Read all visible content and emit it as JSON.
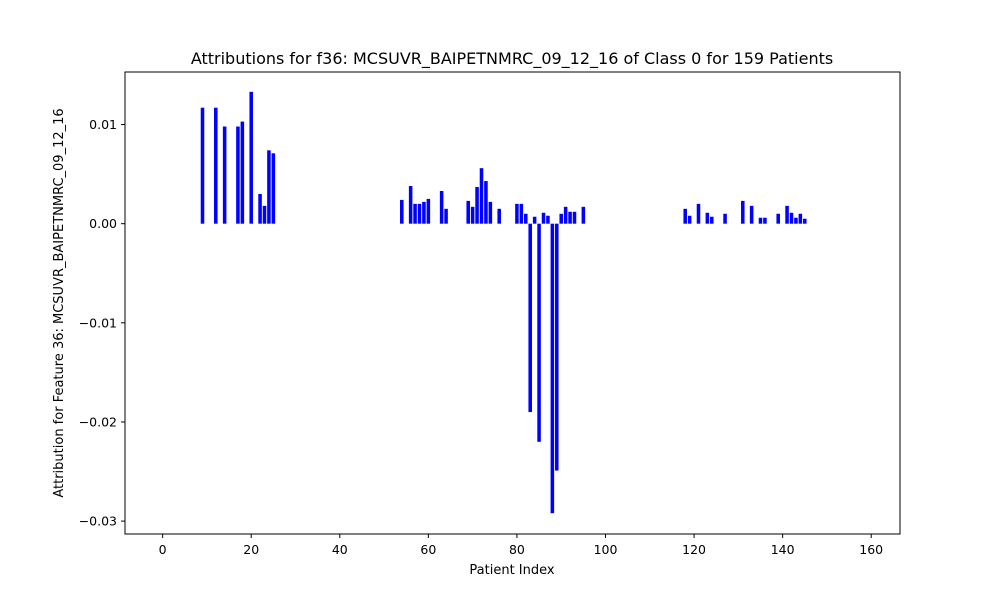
{
  "chart_data": {
    "type": "bar",
    "title": "Attributions for f36: MCSUVR_BAIPETNMRC_09_12_16 of Class 0 for 159 Patients",
    "xlabel": "Patient Index",
    "ylabel": "Attribution for Feature 36: MCSUVR_BAIPETNMRC_09_12_16",
    "xlim": [
      -8.5,
      166.5
    ],
    "ylim": [
      -0.0313,
      0.0153
    ],
    "xticks": [
      0,
      20,
      40,
      60,
      80,
      100,
      120,
      140,
      160
    ],
    "xtick_labels": [
      "0",
      "20",
      "40",
      "60",
      "80",
      "100",
      "120",
      "140",
      "160"
    ],
    "yticks": [
      0.01,
      0.0,
      -0.01,
      -0.02,
      -0.03
    ],
    "ytick_labels": [
      "0.01",
      "0.00",
      "−0.01",
      "−0.02",
      "−0.03"
    ],
    "bar_color": "#0000ff",
    "bar_width": 0.8,
    "grid": false,
    "series": [
      {
        "name": "Attribution",
        "x": [
          9,
          12,
          14,
          17,
          18,
          20,
          22,
          23,
          24,
          25,
          54,
          56,
          57,
          58,
          59,
          60,
          63,
          64,
          69,
          70,
          71,
          72,
          73,
          74,
          76,
          80,
          81,
          82,
          83,
          84,
          85,
          86,
          87,
          88,
          89,
          90,
          91,
          92,
          93,
          95,
          118,
          119,
          121,
          123,
          124,
          127,
          131,
          133,
          135,
          136,
          139,
          141,
          142,
          143,
          144,
          145
        ],
        "values": [
          0.0117,
          0.0117,
          0.0098,
          0.0098,
          0.0103,
          0.0133,
          0.003,
          0.0018,
          0.0074,
          0.0071,
          0.0024,
          0.0038,
          0.002,
          0.002,
          0.0022,
          0.0025,
          0.0033,
          0.0015,
          0.0023,
          0.0017,
          0.0037,
          0.0056,
          0.0043,
          0.0022,
          0.0015,
          0.002,
          0.002,
          0.001,
          -0.019,
          0.0007,
          -0.022,
          0.0011,
          0.0008,
          -0.0292,
          -0.0249,
          0.001,
          0.0017,
          0.0012,
          0.0012,
          0.0017,
          0.0015,
          0.0008,
          0.002,
          0.0011,
          0.0007,
          0.001,
          0.0023,
          0.0018,
          0.0006,
          0.0006,
          0.001,
          0.0018,
          0.0011,
          0.0006,
          0.001,
          0.0005
        ]
      }
    ]
  }
}
